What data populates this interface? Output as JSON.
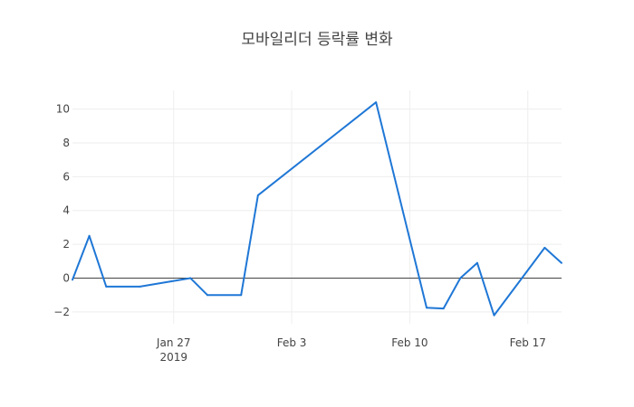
{
  "chart_data": {
    "type": "line",
    "title": "모바일리더 등락률 변화",
    "xlabel": "",
    "ylabel": "",
    "x": [
      "2019-01-21",
      "2019-01-22",
      "2019-01-23",
      "2019-01-25",
      "2019-01-28",
      "2019-01-29",
      "2019-01-31",
      "2019-02-01",
      "2019-02-08",
      "2019-02-11",
      "2019-02-12",
      "2019-02-13",
      "2019-02-14",
      "2019-02-15",
      "2019-02-18",
      "2019-02-19"
    ],
    "series": [
      {
        "values": [
          -0.1,
          2.5,
          -0.5,
          -0.5,
          0.0,
          -1.0,
          -1.0,
          4.9,
          10.4,
          -1.75,
          -1.8,
          0.0,
          0.9,
          -2.2,
          1.8,
          0.9
        ]
      }
    ],
    "xlim": [
      "2019-01-21",
      "2019-02-19"
    ],
    "ylim": [
      -2.7,
      11.1
    ],
    "x_ticks": [
      {
        "date": "2019-01-27",
        "label": "Jan 27",
        "sublabel": "2019"
      },
      {
        "date": "2019-02-03",
        "label": "Feb 3",
        "sublabel": ""
      },
      {
        "date": "2019-02-10",
        "label": "Feb 10",
        "sublabel": ""
      },
      {
        "date": "2019-02-17",
        "label": "Feb 17",
        "sublabel": ""
      }
    ],
    "y_ticks": [
      {
        "value": -2,
        "label": "−2"
      },
      {
        "value": 0,
        "label": "0"
      },
      {
        "value": 2,
        "label": "2"
      },
      {
        "value": 4,
        "label": "4"
      },
      {
        "value": 6,
        "label": "6"
      },
      {
        "value": 8,
        "label": "8"
      },
      {
        "value": 10,
        "label": "10"
      }
    ],
    "grid": true,
    "zero_line": true,
    "legend": "none",
    "line_color": "#1f77d6",
    "grid_color": "#eeeeee",
    "zero_line_color": "#444444"
  }
}
